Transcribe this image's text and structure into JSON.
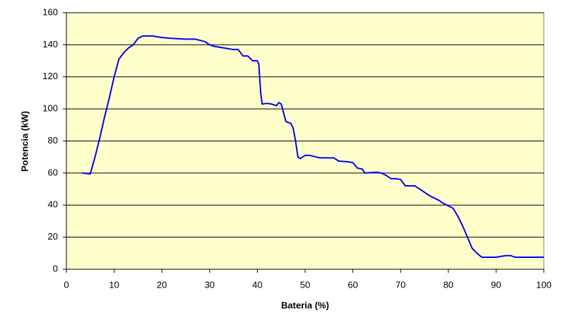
{
  "chart_data": {
    "type": "line",
    "x_label": "Bateria (%)",
    "y_label": "Potencia (kW)",
    "xlim": [
      0,
      100
    ],
    "ylim": [
      0,
      160
    ],
    "xticks": [
      0,
      10,
      20,
      30,
      40,
      50,
      60,
      70,
      80,
      90,
      100
    ],
    "yticks": [
      0,
      20,
      40,
      60,
      80,
      100,
      120,
      140,
      160
    ],
    "grid": true,
    "background": "#ffffcc",
    "series": [
      {
        "color": "#0000ff",
        "x": [
          3.3,
          5,
          6,
          7,
          8,
          9,
          10,
          11,
          12,
          13,
          14,
          15,
          16,
          18,
          20,
          22,
          25,
          27,
          29,
          30,
          31,
          33,
          35,
          36,
          37,
          38,
          39,
          40,
          40.3,
          40.7,
          41,
          42,
          43,
          44,
          44.5,
          45,
          46,
          47,
          47.5,
          48,
          48.5,
          49,
          50,
          51,
          53,
          56,
          57,
          59,
          60,
          61,
          62,
          62.5,
          65,
          66,
          67,
          68,
          69,
          70,
          71,
          72,
          73,
          74,
          75,
          76,
          78,
          79,
          81,
          82,
          83,
          84,
          85,
          86,
          87,
          89,
          90,
          91,
          92,
          93,
          94,
          96,
          100
        ],
        "values": [
          60,
          59.5,
          70,
          82,
          95,
          107,
          120,
          131,
          135,
          138,
          140,
          144,
          145.5,
          145.5,
          144.5,
          144,
          143.5,
          143.5,
          142,
          140,
          139,
          138,
          137,
          137,
          133,
          133,
          130,
          130,
          128,
          110,
          103,
          103.5,
          103,
          102,
          104,
          103,
          92,
          91,
          88,
          80,
          70,
          69,
          71,
          71,
          69.5,
          69.5,
          67.5,
          67,
          66.5,
          63,
          62.5,
          60,
          60.5,
          60,
          58.5,
          56.5,
          56.5,
          56,
          52,
          52,
          52,
          50,
          48,
          46,
          43,
          41,
          38,
          33,
          27,
          20,
          13,
          10,
          7.5,
          7.5,
          7.5,
          8,
          8.5,
          8.5,
          7.5,
          7.5,
          7.5
        ]
      }
    ]
  }
}
